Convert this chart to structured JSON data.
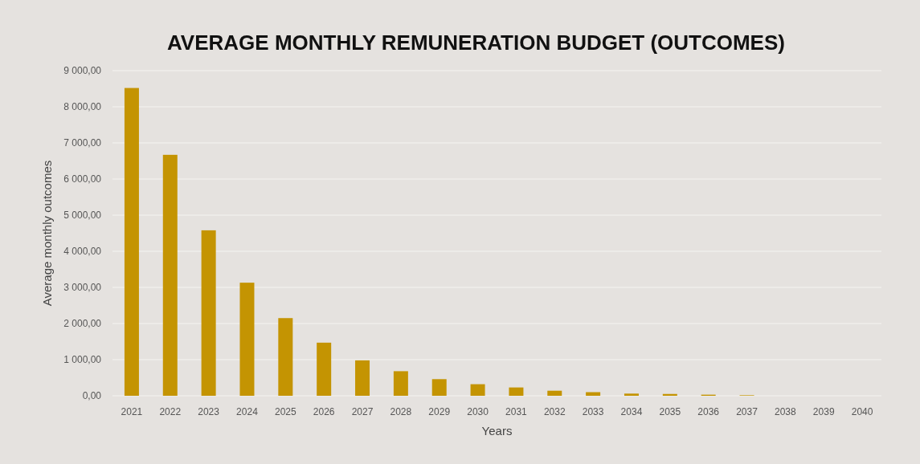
{
  "chart_data": {
    "type": "bar",
    "title": "AVERAGE MONTHLY REMUNERATION BUDGET (OUTCOMES)",
    "xlabel": "Years",
    "ylabel": "Average monthly outcomes",
    "categories": [
      "2021",
      "2022",
      "2023",
      "2024",
      "2025",
      "2026",
      "2027",
      "2028",
      "2029",
      "2030",
      "2031",
      "2032",
      "2033",
      "2034",
      "2035",
      "2036",
      "2037",
      "2038",
      "2039",
      "2040"
    ],
    "values": [
      8520,
      6670,
      4580,
      3130,
      2150,
      1470,
      980,
      680,
      460,
      320,
      230,
      140,
      100,
      60,
      50,
      30,
      15,
      0,
      0,
      0
    ],
    "color": "#c49402",
    "ylim": [
      0,
      9000
    ],
    "yticks": [
      {
        "value": 0,
        "label": "0,00"
      },
      {
        "value": 1000,
        "label": "1 000,00"
      },
      {
        "value": 2000,
        "label": "2 000,00"
      },
      {
        "value": 3000,
        "label": "3 000,00"
      },
      {
        "value": 4000,
        "label": "4 000,00"
      },
      {
        "value": 5000,
        "label": "5 000,00"
      },
      {
        "value": 6000,
        "label": "6 000,00"
      },
      {
        "value": 7000,
        "label": "7 000,00"
      },
      {
        "value": 8000,
        "label": "8 000,00"
      },
      {
        "value": 9000,
        "label": "9 000,00"
      }
    ],
    "grid": "y"
  }
}
